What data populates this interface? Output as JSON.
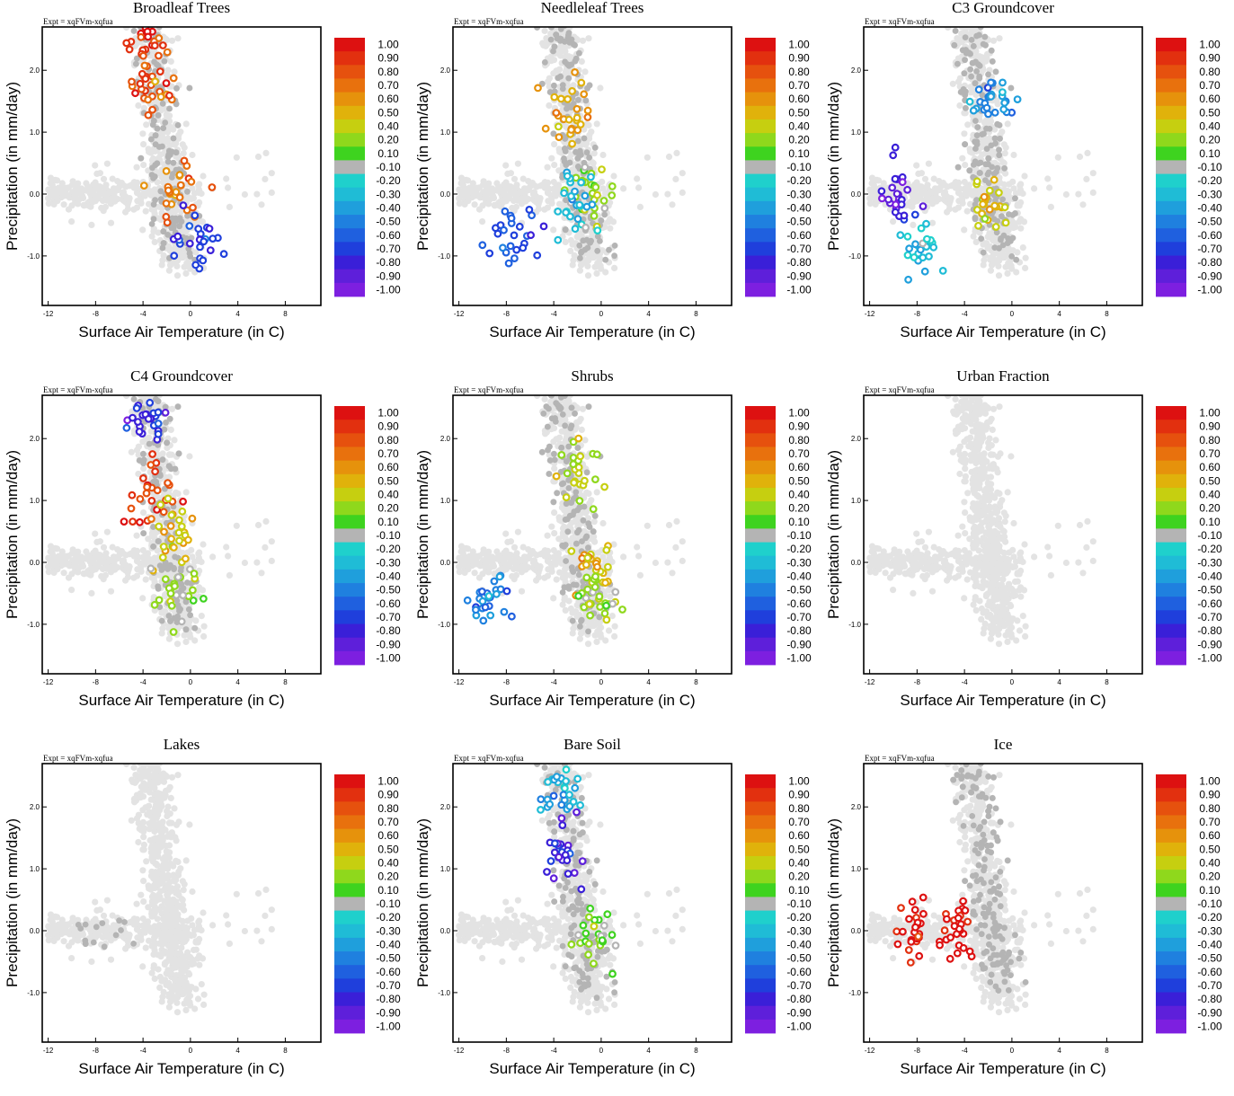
{
  "figure": {
    "expt_label": "Expt = xqFVm-xqfua",
    "xlabel": "Surface Air Temperature (in C)",
    "ylabel": "Precipitation (in mm/day)",
    "xticks": [
      "-12",
      "-8",
      "-4",
      "0",
      "4",
      "8"
    ],
    "yticks": [
      "2.0",
      "1.0",
      "0.0",
      "-1.0"
    ],
    "colorbar": {
      "labels": [
        "1.00",
        "0.90",
        "0.80",
        "0.70",
        "0.60",
        "0.50",
        "0.40",
        "0.20",
        "0.10",
        "-0.10",
        "-0.20",
        "-0.30",
        "-0.40",
        "-0.50",
        "-0.60",
        "-0.70",
        "-0.80",
        "-0.90",
        "-1.00"
      ],
      "colors": [
        "#dd1111",
        "#e2300f",
        "#e6510e",
        "#e8710d",
        "#e6920c",
        "#e0b20b",
        "#c6cf10",
        "#8fd81c",
        "#3ed31f",
        "#b4b4b4",
        "#1fd0cc",
        "#1fbcd6",
        "#1f9fdc",
        "#1f80df",
        "#1f60df",
        "#1f3fdc",
        "#3a1fd8",
        "#5e1fda",
        "#7d1fe0"
      ]
    },
    "colors": {
      "background_points": "#e3e3e3",
      "neutral_points": "#b4b4b4"
    }
  },
  "chart_data": [
    {
      "type": "scatter",
      "title": "Broadleaf Trees",
      "xlim": [
        -12.5,
        11
      ],
      "ylim": [
        -1.8,
        2.7
      ],
      "correlation_range": [
        -1,
        1
      ],
      "highlight_clusters": [
        {
          "x": -3.5,
          "y": 2.4,
          "r": 0.9
        },
        {
          "x": -3.2,
          "y": 1.7,
          "r": 0.8
        },
        {
          "x": -1.5,
          "y": 0.0,
          "r": 0.7
        },
        {
          "x": 0.5,
          "y": -0.8,
          "r": -0.7
        }
      ]
    },
    {
      "type": "scatter",
      "title": "Needleleaf Trees",
      "xlim": [
        -12.5,
        11
      ],
      "ylim": [
        -1.8,
        2.7
      ],
      "correlation_range": [
        -1,
        1
      ],
      "highlight_clusters": [
        {
          "x": -2.5,
          "y": 1.3,
          "r": 0.55
        },
        {
          "x": -0.5,
          "y": 0.0,
          "r": 0.2
        },
        {
          "x": -7.5,
          "y": -0.7,
          "r": -0.65
        },
        {
          "x": -2.5,
          "y": -0.2,
          "r": -0.3
        }
      ]
    },
    {
      "type": "scatter",
      "title": "C3 Groundcover",
      "xlim": [
        -12.5,
        11
      ],
      "ylim": [
        -1.8,
        2.7
      ],
      "correlation_range": [
        -1,
        1
      ],
      "highlight_clusters": [
        {
          "x": -2.0,
          "y": -0.2,
          "r": 0.45
        },
        {
          "x": -9.5,
          "y": 0.0,
          "r": -0.85
        },
        {
          "x": -8.0,
          "y": -0.9,
          "r": -0.3
        },
        {
          "x": -1.5,
          "y": 1.5,
          "r": -0.45
        }
      ]
    },
    {
      "type": "scatter",
      "title": "C4 Groundcover",
      "xlim": [
        -12.5,
        11
      ],
      "ylim": [
        -1.8,
        2.7
      ],
      "correlation_range": [
        -1,
        1
      ],
      "highlight_clusters": [
        {
          "x": -4.0,
          "y": 2.3,
          "r": -0.8
        },
        {
          "x": -3.5,
          "y": 1.0,
          "r": 0.85
        },
        {
          "x": -1.5,
          "y": 0.5,
          "r": 0.45
        },
        {
          "x": -1.0,
          "y": -0.5,
          "r": 0.2
        }
      ]
    },
    {
      "type": "scatter",
      "title": "Shrubs",
      "xlim": [
        -12.5,
        11
      ],
      "ylim": [
        -1.8,
        2.7
      ],
      "correlation_range": [
        -1,
        1
      ],
      "highlight_clusters": [
        {
          "x": -0.5,
          "y": -0.1,
          "r": 0.5
        },
        {
          "x": -2.0,
          "y": 1.5,
          "r": 0.3
        },
        {
          "x": -9.0,
          "y": -0.6,
          "r": -0.5
        },
        {
          "x": -0.5,
          "y": -0.6,
          "r": 0.2
        }
      ]
    },
    {
      "type": "scatter",
      "title": "Urban Fraction",
      "xlim": [
        -12.5,
        11
      ],
      "ylim": [
        -1.8,
        2.7
      ],
      "correlation_range": [
        -1,
        1
      ],
      "highlight_clusters": []
    },
    {
      "type": "scatter",
      "title": "Lakes",
      "xlim": [
        -12.5,
        11
      ],
      "ylim": [
        -1.8,
        2.7
      ],
      "correlation_range": [
        -1,
        1
      ],
      "highlight_clusters": []
    },
    {
      "type": "scatter",
      "title": "Bare Soil",
      "xlim": [
        -12.5,
        11
      ],
      "ylim": [
        -1.8,
        2.7
      ],
      "correlation_range": [
        -1,
        1
      ],
      "highlight_clusters": [
        {
          "x": -3.0,
          "y": 1.2,
          "r": -0.8
        },
        {
          "x": -3.5,
          "y": 2.2,
          "r": -0.35
        },
        {
          "x": -0.5,
          "y": -0.1,
          "r": 0.15
        }
      ]
    },
    {
      "type": "scatter",
      "title": "Ice",
      "xlim": [
        -12.5,
        11
      ],
      "ylim": [
        -1.8,
        2.7
      ],
      "correlation_range": [
        -1,
        1
      ],
      "highlight_clusters": [
        {
          "x": -8.0,
          "y": 0.0,
          "r": 1.0
        },
        {
          "x": -4.5,
          "y": 0.0,
          "r": 1.0
        }
      ]
    }
  ]
}
